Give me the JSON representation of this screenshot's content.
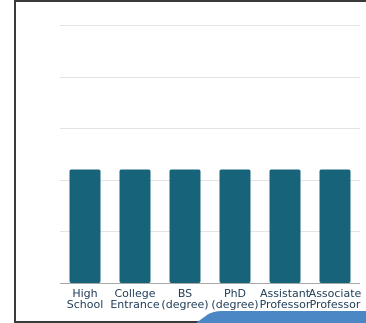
{
  "chart_data": {
    "type": "bar",
    "categories": [
      [
        "High",
        "School"
      ],
      [
        "College",
        "Entrance"
      ],
      [
        "BS",
        "(degree)"
      ],
      [
        "PhD",
        "(degree)"
      ],
      [
        "Assistant",
        "Professor"
      ],
      [
        "Associate",
        "Professor"
      ]
    ],
    "values": [
      2.2,
      2.2,
      2.2,
      2.2,
      2.2,
      2.2
    ],
    "ylim": [
      0,
      5
    ],
    "grid": true,
    "colors": {
      "bar": "#16637a",
      "grid": "#e3e3e3",
      "axis": "#a9a9a9",
      "label": "#1f3b57",
      "accent_shape": "#4a87c4"
    }
  }
}
